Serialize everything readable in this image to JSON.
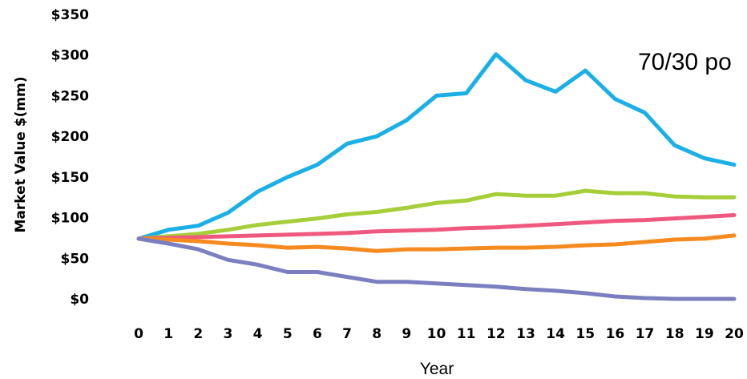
{
  "chart_data": {
    "type": "line",
    "title": "",
    "annotation": "70/30 po",
    "xlabel": "Year",
    "ylabel": "Market Value $(mm)",
    "x": [
      0,
      1,
      2,
      3,
      4,
      5,
      6,
      7,
      8,
      9,
      10,
      11,
      12,
      13,
      14,
      15,
      16,
      17,
      18,
      19,
      20
    ],
    "xlim": [
      0,
      20
    ],
    "ylim": [
      0,
      350
    ],
    "yticks": [
      0,
      50,
      100,
      150,
      200,
      250,
      300,
      350
    ],
    "ytick_labels": [
      "$0",
      "$50",
      "$100",
      "$150",
      "$200",
      "$250",
      "$300",
      "$350"
    ],
    "xtick_labels": [
      "0",
      "1",
      "2",
      "3",
      "4",
      "5",
      "6",
      "7",
      "8",
      "9",
      "10",
      "11",
      "12",
      "13",
      "14",
      "15",
      "16",
      "17",
      "18",
      "19",
      "20"
    ],
    "grid": false,
    "legend": "none",
    "series": [
      {
        "color": "#1aafe6",
        "values": [
          74,
          85,
          90,
          106,
          132,
          150,
          165,
          191,
          200,
          220,
          250,
          253,
          301,
          269,
          255,
          281,
          246,
          229,
          189,
          173,
          165
        ]
      },
      {
        "color": "#a6ce39",
        "values": [
          74,
          77,
          80,
          85,
          91,
          95,
          99,
          104,
          107,
          112,
          118,
          121,
          129,
          127,
          127,
          133,
          130,
          130,
          126,
          125,
          125
        ]
      },
      {
        "color": "#f0597f",
        "values": [
          74,
          75,
          76,
          77,
          78,
          79,
          80,
          81,
          83,
          84,
          85,
          87,
          88,
          90,
          92,
          94,
          96,
          97,
          99,
          101,
          103
        ]
      },
      {
        "color": "#f58a1f",
        "values": [
          74,
          73,
          71,
          68,
          66,
          63,
          64,
          62,
          59,
          61,
          61,
          62,
          63,
          63,
          64,
          66,
          67,
          70,
          73,
          74,
          78
        ]
      },
      {
        "color": "#7b7fbf",
        "values": [
          74,
          68,
          61,
          48,
          42,
          33,
          33,
          27,
          21,
          21,
          19,
          17,
          15,
          12,
          10,
          7,
          3,
          1,
          0,
          0,
          0
        ]
      }
    ]
  }
}
